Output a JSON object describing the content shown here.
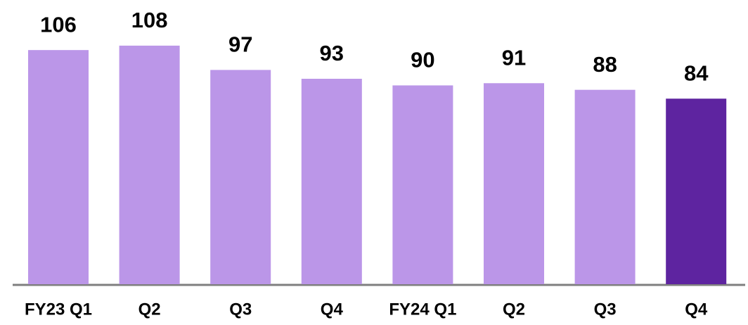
{
  "chart_data": {
    "type": "bar",
    "categories": [
      "FY23 Q1",
      "Q2",
      "Q3",
      "Q4",
      "FY24 Q1",
      "Q2",
      "Q3",
      "Q4"
    ],
    "values": [
      106,
      108,
      97,
      93,
      90,
      91,
      88,
      84
    ],
    "colors": [
      "#bb96e8",
      "#bb96e8",
      "#bb96e8",
      "#bb96e8",
      "#bb96e8",
      "#bb96e8",
      "#bb96e8",
      "#5e24a0"
    ]
  }
}
